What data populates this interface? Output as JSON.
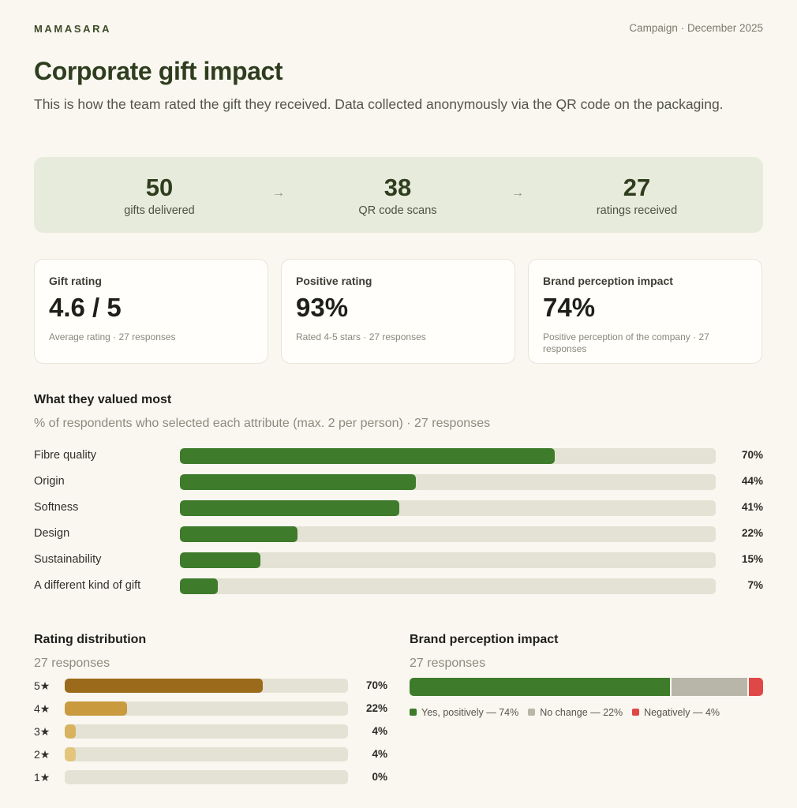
{
  "header": {
    "brand": "MAMASARA",
    "campaign": "Campaign · December 2025"
  },
  "title": "Corporate gift impact",
  "intro": "This is how the team rated the gift they received. Data collected anonymously via the QR code on the packaging.",
  "funnel": [
    {
      "value": "50",
      "label": "gifts delivered"
    },
    {
      "value": "38",
      "label": "QR code scans"
    },
    {
      "value": "27",
      "label": "ratings received"
    }
  ],
  "funnel_arrow": "→",
  "cards": [
    {
      "label": "Gift rating",
      "value": "4.6 / 5",
      "note": "Average rating · 27 responses"
    },
    {
      "label": "Positive rating",
      "value": "93%",
      "note": "Rated 4-5 stars · 27 responses"
    },
    {
      "label": "Brand perception impact",
      "value": "74%",
      "note": "Positive perception of the company · 27 responses"
    }
  ],
  "colors": {
    "green": "#3e7c2b",
    "gold_5": "#9b6b1b",
    "gold_4": "#c99a3e",
    "gold_3": "#d8b25e",
    "gold_2": "#e3c67c",
    "gray": "#b7b6a8",
    "red": "#e04848"
  },
  "chart_data": [
    {
      "type": "bar",
      "title": "What they valued most",
      "subtitle": "% of respondents who selected each attribute (max. 2 per person) · 27 responses",
      "categories": [
        "Fibre quality",
        "Origin",
        "Softness",
        "Design",
        "Sustainability",
        "A different kind of gift"
      ],
      "values": [
        70,
        44,
        41,
        22,
        15,
        7
      ],
      "value_labels": [
        "70%",
        "44%",
        "41%",
        "22%",
        "15%",
        "7%"
      ],
      "ylim": [
        0,
        100
      ]
    },
    {
      "type": "bar",
      "title": "Rating distribution",
      "subtitle": "27 responses",
      "categories": [
        "5★",
        "4★",
        "3★",
        "2★",
        "1★"
      ],
      "values": [
        70,
        22,
        4,
        4,
        0
      ],
      "value_labels": [
        "70%",
        "22%",
        "4%",
        "4%",
        "0%"
      ],
      "ylim": [
        0,
        100
      ]
    },
    {
      "type": "bar",
      "title": "Brand perception impact",
      "subtitle": "27 responses",
      "stacked": true,
      "series": [
        {
          "name": "Yes, positively — 74%",
          "value": 74
        },
        {
          "name": "No change — 22%",
          "value": 22
        },
        {
          "name": "Negatively — 4%",
          "value": 4
        }
      ],
      "legend": "bottom"
    }
  ]
}
